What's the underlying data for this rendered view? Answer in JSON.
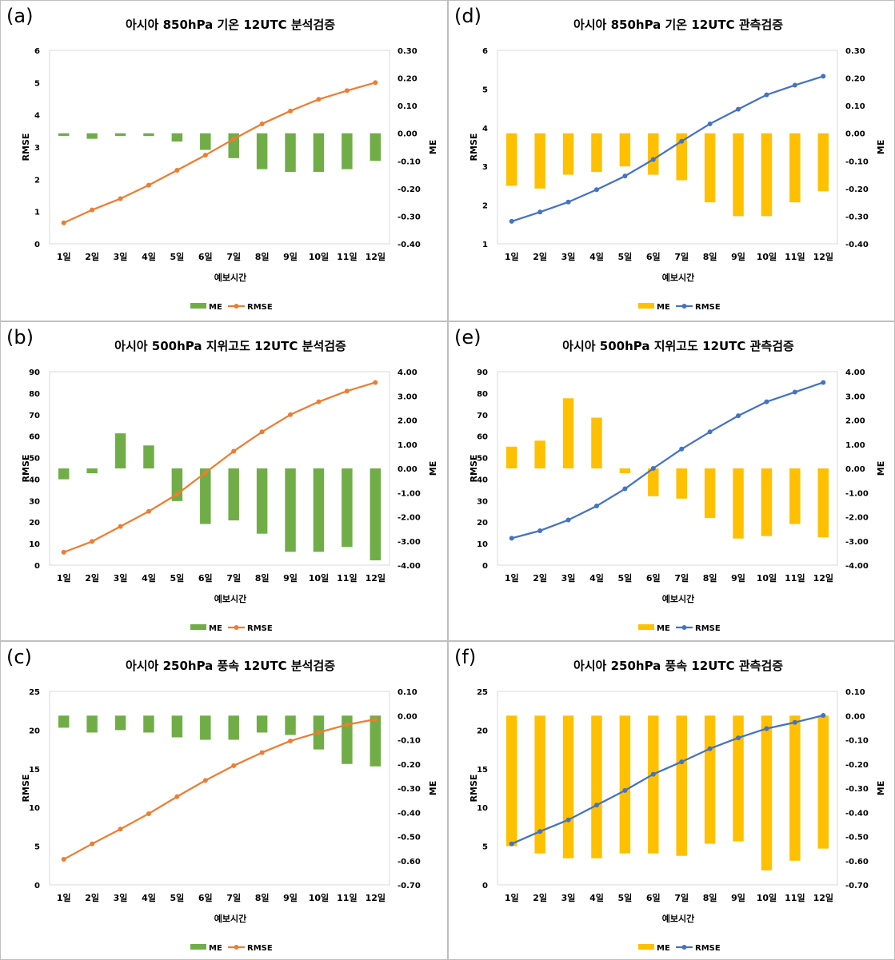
{
  "chart_data": [
    {
      "panel": "(a)",
      "type": "bar+line",
      "title": "아시아 850hPa 기온 12UTC 분석검증",
      "xlabel": "예보시간",
      "ylabel": "RMSE",
      "y2label": "ME",
      "categories": [
        "1일",
        "2일",
        "3일",
        "4일",
        "5일",
        "6일",
        "7일",
        "8일",
        "9일",
        "10일",
        "11일",
        "12일"
      ],
      "ylim": [
        0,
        6
      ],
      "yticks": [
        "0",
        "1",
        "2",
        "3",
        "4",
        "5",
        "6"
      ],
      "y2lim": [
        -0.4,
        0.3
      ],
      "y2ticks": [
        "-0.40",
        "-0.30",
        "-0.20",
        "-0.10",
        "0.00",
        "0.10",
        "0.20",
        "0.30"
      ],
      "bar_color": "#70ad47",
      "line_color": "#ed7d31",
      "series": [
        {
          "name": "ME",
          "kind": "bar",
          "axis": "right",
          "values": [
            -0.01,
            -0.02,
            -0.01,
            -0.01,
            -0.03,
            -0.06,
            -0.09,
            -0.13,
            -0.14,
            -0.14,
            -0.13,
            -0.1
          ]
        },
        {
          "name": "RMSE",
          "kind": "line",
          "axis": "left",
          "values": [
            0.65,
            1.05,
            1.4,
            1.82,
            2.28,
            2.75,
            3.25,
            3.72,
            4.12,
            4.48,
            4.75,
            5.0
          ]
        }
      ],
      "legend": "bottom"
    },
    {
      "panel": "(b)",
      "type": "bar+line",
      "title": "아시아 500hPa 지위고도 12UTC 분석검증",
      "xlabel": "예보시간",
      "ylabel": "RMSE",
      "y2label": "ME",
      "categories": [
        "1일",
        "2일",
        "3일",
        "4일",
        "5일",
        "6일",
        "7일",
        "8일",
        "9일",
        "10일",
        "11일",
        "12일"
      ],
      "ylim": [
        0,
        90
      ],
      "yticks": [
        "0",
        "10",
        "20",
        "30",
        "40",
        "50",
        "60",
        "70",
        "80",
        "90"
      ],
      "y2lim": [
        -4.0,
        4.0
      ],
      "y2ticks": [
        "-4.00",
        "-3.00",
        "-2.00",
        "-1.00",
        "0.00",
        "1.00",
        "2.00",
        "3.00",
        "4.00"
      ],
      "bar_color": "#70ad47",
      "line_color": "#ed7d31",
      "series": [
        {
          "name": "ME",
          "kind": "bar",
          "axis": "right",
          "values": [
            -0.45,
            -0.2,
            1.45,
            0.95,
            -1.35,
            -2.3,
            -2.15,
            -2.7,
            -3.45,
            -3.45,
            -3.25,
            -3.8
          ]
        },
        {
          "name": "RMSE",
          "kind": "line",
          "axis": "left",
          "values": [
            6,
            11,
            18,
            25,
            33,
            43,
            53,
            62,
            70,
            76,
            81,
            85
          ]
        }
      ],
      "legend": "bottom"
    },
    {
      "panel": "(c)",
      "type": "bar+line",
      "title": "아시아 250hPa 풍속 12UTC 분석검증",
      "xlabel": "예보시간",
      "ylabel": "RMSE",
      "y2label": "ME",
      "categories": [
        "1일",
        "2일",
        "3일",
        "4일",
        "5일",
        "6일",
        "7일",
        "8일",
        "9일",
        "10일",
        "11일",
        "12일"
      ],
      "ylim": [
        0,
        25
      ],
      "yticks": [
        "0",
        "5",
        "10",
        "15",
        "20",
        "25"
      ],
      "y2lim": [
        -0.7,
        0.1
      ],
      "y2ticks": [
        "-0.70",
        "-0.60",
        "-0.50",
        "-0.40",
        "-0.30",
        "-0.20",
        "-0.10",
        "0.00",
        "0.10"
      ],
      "bar_color": "#70ad47",
      "line_color": "#ed7d31",
      "series": [
        {
          "name": "ME",
          "kind": "bar",
          "axis": "right",
          "values": [
            -0.05,
            -0.07,
            -0.06,
            -0.07,
            -0.09,
            -0.1,
            -0.1,
            -0.07,
            -0.08,
            -0.14,
            -0.2,
            -0.21
          ]
        },
        {
          "name": "RMSE",
          "kind": "line",
          "axis": "left",
          "values": [
            3.3,
            5.3,
            7.2,
            9.2,
            11.4,
            13.5,
            15.4,
            17.1,
            18.6,
            19.7,
            20.7,
            21.4
          ]
        }
      ],
      "legend": "bottom"
    },
    {
      "panel": "(d)",
      "type": "bar+line",
      "title": "아시아 850hPa 기온 12UTC 관측검증",
      "xlabel": "예보시간",
      "ylabel": "RMSE",
      "y2label": "ME",
      "categories": [
        "1일",
        "2일",
        "3일",
        "4일",
        "5일",
        "6일",
        "7일",
        "8일",
        "9일",
        "10일",
        "11일",
        "12일"
      ],
      "ylim": [
        1,
        6
      ],
      "yticks": [
        "1",
        "2",
        "3",
        "4",
        "5",
        "6"
      ],
      "y2lim": [
        -0.4,
        0.3
      ],
      "y2ticks": [
        "-0.40",
        "-0.30",
        "-0.20",
        "-0.10",
        "0.00",
        "0.10",
        "0.20",
        "0.30"
      ],
      "bar_color": "#ffc000",
      "line_color": "#4472c4",
      "series": [
        {
          "name": "ME",
          "kind": "bar",
          "axis": "right",
          "values": [
            -0.19,
            -0.2,
            -0.15,
            -0.14,
            -0.12,
            -0.15,
            -0.17,
            -0.25,
            -0.3,
            -0.3,
            -0.25,
            -0.21
          ]
        },
        {
          "name": "RMSE",
          "kind": "line",
          "axis": "left",
          "values": [
            1.58,
            1.82,
            2.08,
            2.4,
            2.75,
            3.18,
            3.65,
            4.1,
            4.48,
            4.85,
            5.1,
            5.33
          ]
        }
      ],
      "legend": "bottom"
    },
    {
      "panel": "(e)",
      "type": "bar+line",
      "title": "아시아 500hPa 지위고도 12UTC 관측검증",
      "xlabel": "예보시간",
      "ylabel": "RMSE",
      "y2label": "ME",
      "categories": [
        "1일",
        "2일",
        "3일",
        "4일",
        "5일",
        "6일",
        "7일",
        "8일",
        "9일",
        "10일",
        "11일",
        "12일"
      ],
      "ylim": [
        0,
        90
      ],
      "yticks": [
        "0",
        "10",
        "20",
        "30",
        "40",
        "50",
        "60",
        "70",
        "80",
        "90"
      ],
      "y2lim": [
        -4.0,
        4.0
      ],
      "y2ticks": [
        "-4.00",
        "-3.00",
        "-2.00",
        "-1.00",
        "0.00",
        "1.00",
        "2.00",
        "3.00",
        "4.00"
      ],
      "bar_color": "#ffc000",
      "line_color": "#4472c4",
      "series": [
        {
          "name": "ME",
          "kind": "bar",
          "axis": "right",
          "values": [
            0.9,
            1.15,
            2.9,
            2.1,
            -0.2,
            -1.15,
            -1.25,
            -2.05,
            -2.9,
            -2.8,
            -2.3,
            -2.85
          ]
        },
        {
          "name": "RMSE",
          "kind": "line",
          "axis": "left",
          "values": [
            12.5,
            16,
            21,
            27.5,
            35.5,
            45,
            54,
            62,
            69.5,
            76,
            80.5,
            85
          ]
        }
      ],
      "legend": "bottom"
    },
    {
      "panel": "(f)",
      "type": "bar+line",
      "title": "아시아 250hPa 풍속 12UTC 관측검증",
      "xlabel": "예보시간",
      "ylabel": "RMSE",
      "y2label": "ME",
      "categories": [
        "1일",
        "2일",
        "3일",
        "4일",
        "5일",
        "6일",
        "7일",
        "8일",
        "9일",
        "10일",
        "11일",
        "12일"
      ],
      "ylim": [
        0,
        25
      ],
      "yticks": [
        "0",
        "5",
        "10",
        "15",
        "20",
        "25"
      ],
      "y2lim": [
        -0.7,
        0.1
      ],
      "y2ticks": [
        "-0.70",
        "-0.60",
        "-0.50",
        "-0.40",
        "-0.30",
        "-0.20",
        "-0.10",
        "0.00",
        "0.10"
      ],
      "bar_color": "#ffc000",
      "line_color": "#4472c4",
      "series": [
        {
          "name": "ME",
          "kind": "bar",
          "axis": "right",
          "values": [
            -0.54,
            -0.57,
            -0.59,
            -0.59,
            -0.57,
            -0.57,
            -0.58,
            -0.53,
            -0.52,
            -0.64,
            -0.6,
            -0.55
          ]
        },
        {
          "name": "RMSE",
          "kind": "line",
          "axis": "left",
          "values": [
            5.3,
            6.9,
            8.4,
            10.3,
            12.2,
            14.3,
            15.9,
            17.6,
            19.0,
            20.2,
            21.0,
            21.9
          ]
        }
      ],
      "legend": "bottom"
    }
  ]
}
